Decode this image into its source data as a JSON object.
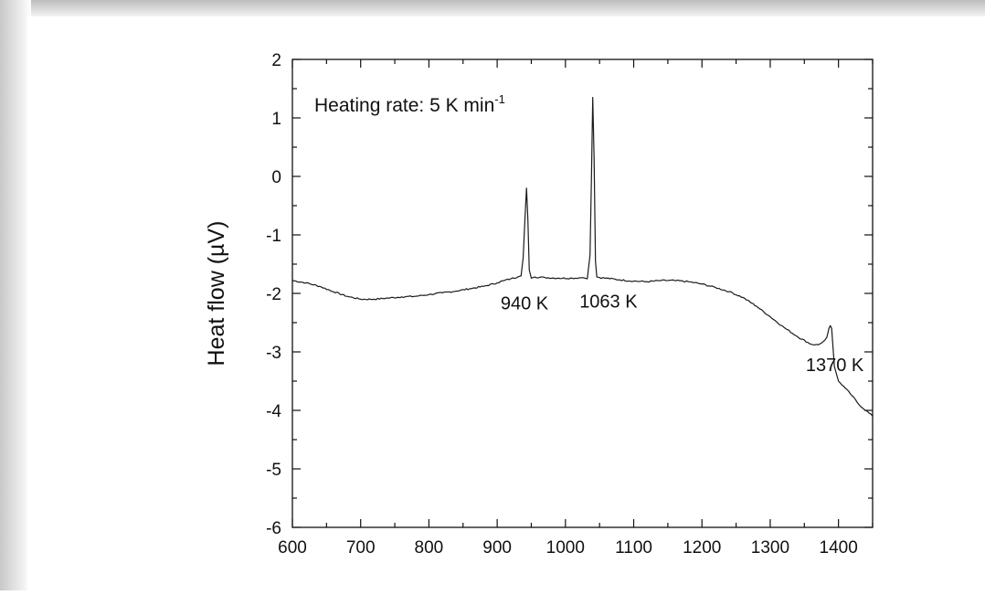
{
  "chart_data": {
    "type": "line",
    "title": "",
    "xlabel": "",
    "ylabel": "Heat flow (µV)",
    "xlim": [
      600,
      1450
    ],
    "ylim": [
      -6,
      2
    ],
    "x_ticks": [
      600,
      700,
      800,
      900,
      1000,
      1100,
      1200,
      1300,
      1400
    ],
    "y_ticks": [
      2,
      1,
      0,
      -1,
      -2,
      -3,
      -4,
      -5,
      -6
    ],
    "grid": false,
    "annotation_text": {
      "prefix": "Heating rate: 5 K min",
      "superscript": "-1"
    },
    "peak_labels": [
      {
        "text": "940 K",
        "x": 940,
        "y": -2.15
      },
      {
        "text": "1063 K",
        "x": 1063,
        "y": -2.12
      },
      {
        "text": "1370 K",
        "x": 1370,
        "y": -3.2
      }
    ],
    "series": [
      {
        "x": [
          600,
          620,
          640,
          660,
          680,
          700,
          720,
          740,
          760,
          780,
          800,
          820,
          840,
          860,
          880,
          900,
          910,
          920,
          930,
          935,
          938,
          941,
          943,
          945,
          947,
          950,
          955,
          970,
          990,
          1010,
          1025,
          1032,
          1036,
          1038,
          1040,
          1042,
          1044,
          1046,
          1050,
          1060,
          1080,
          1100,
          1120,
          1140,
          1160,
          1180,
          1200,
          1220,
          1240,
          1260,
          1280,
          1300,
          1320,
          1340,
          1360,
          1370,
          1375,
          1380,
          1383,
          1386,
          1388,
          1390,
          1394,
          1400,
          1410,
          1420,
          1430,
          1440,
          1450
        ],
        "y": [
          -1.78,
          -1.82,
          -1.88,
          -1.97,
          -2.05,
          -2.1,
          -2.1,
          -2.08,
          -2.06,
          -2.05,
          -2.02,
          -1.99,
          -1.96,
          -1.92,
          -1.88,
          -1.82,
          -1.78,
          -1.75,
          -1.72,
          -1.7,
          -1.4,
          -0.65,
          -0.2,
          -0.75,
          -1.6,
          -1.74,
          -1.72,
          -1.73,
          -1.74,
          -1.74,
          -1.73,
          -1.75,
          -1.35,
          -0.1,
          1.35,
          0.3,
          -1.45,
          -1.72,
          -1.73,
          -1.74,
          -1.77,
          -1.79,
          -1.8,
          -1.78,
          -1.78,
          -1.8,
          -1.84,
          -1.9,
          -1.97,
          -2.07,
          -2.22,
          -2.4,
          -2.58,
          -2.74,
          -2.87,
          -2.88,
          -2.85,
          -2.8,
          -2.75,
          -2.6,
          -2.55,
          -2.6,
          -3.25,
          -3.5,
          -3.62,
          -3.75,
          -3.9,
          -4.0,
          -4.1
        ]
      }
    ]
  }
}
